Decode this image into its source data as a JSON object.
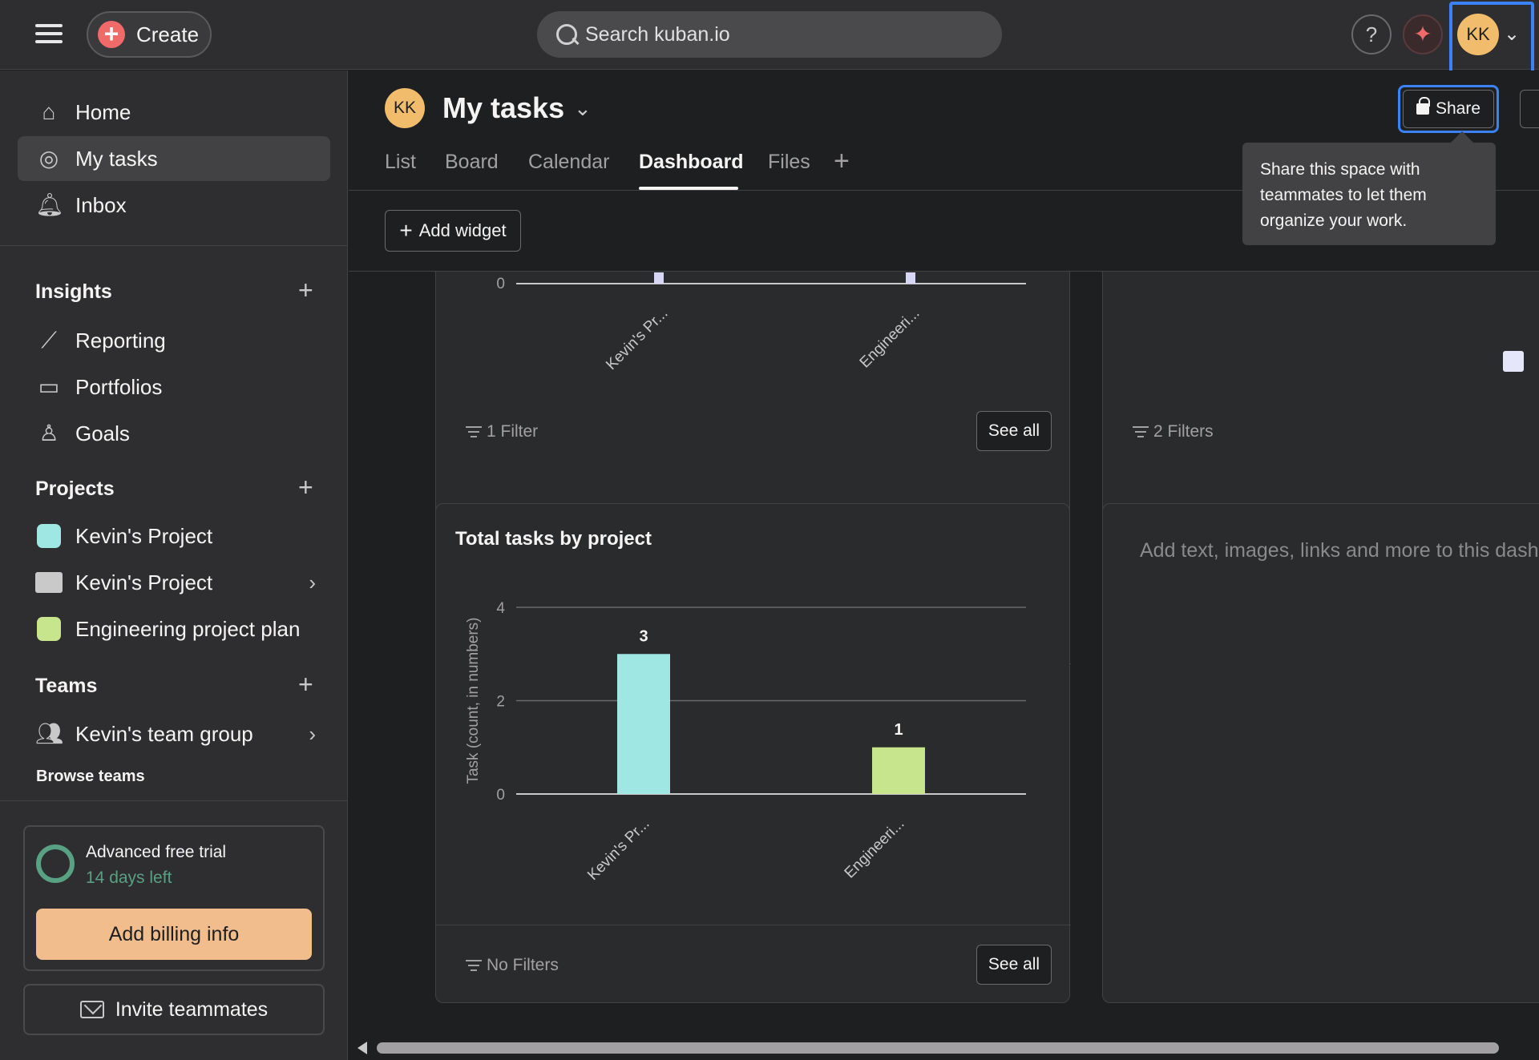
{
  "topbar": {
    "create_label": "Create",
    "search_placeholder": "Search kuban.io",
    "help_label": "?",
    "avatar_initials": "KK"
  },
  "sidebar": {
    "nav": [
      {
        "label": "Home",
        "icon": "home-icon"
      },
      {
        "label": "My tasks",
        "icon": "check-circle-icon",
        "active": true
      },
      {
        "label": "Inbox",
        "icon": "bell-icon"
      }
    ],
    "insights": {
      "heading": "Insights",
      "items": [
        {
          "label": "Reporting",
          "icon": "chart-line-icon"
        },
        {
          "label": "Portfolios",
          "icon": "folder-icon"
        },
        {
          "label": "Goals",
          "icon": "person-icon"
        }
      ]
    },
    "projects": {
      "heading": "Projects",
      "items": [
        {
          "label": "Kevin's Project",
          "color": "#9ee7e3"
        },
        {
          "label": "Kevin's Project",
          "color": "#c9c9c9"
        },
        {
          "label": "Engineering project plan",
          "color": "#c7e58c"
        }
      ]
    },
    "teams": {
      "heading": "Teams",
      "items": [
        {
          "label": "Kevin's team group"
        }
      ],
      "browse": "Browse teams"
    },
    "trial": {
      "title": "Advanced free trial",
      "days_left": "14 days left",
      "billing_button": "Add billing info"
    },
    "invite_button": "Invite teammates"
  },
  "header": {
    "avatar_initials": "KK",
    "title": "My tasks",
    "tabs": [
      {
        "label": "List"
      },
      {
        "label": "Board"
      },
      {
        "label": "Calendar"
      },
      {
        "label": "Dashboard",
        "active": true
      },
      {
        "label": "Files"
      }
    ],
    "share_label": "Share",
    "tooltip": "Share this space with teammates to let them organize your work.",
    "add_widget_label": "Add widget"
  },
  "dashboard": {
    "top_left_card": {
      "filters": "1 Filter",
      "see_all": "See all",
      "zero_tick": "0",
      "categories": [
        "Kevin's Pr...",
        "Engineeri..."
      ]
    },
    "top_right_card": {
      "filters": "2 Filters"
    },
    "total_tasks_card": {
      "title": "Total tasks by project",
      "filters": "No Filters",
      "see_all": "See all"
    },
    "text_widget": {
      "placeholder": "Add text, images, links and more to this dash"
    }
  },
  "chart_data": {
    "type": "bar",
    "title": "Total tasks by project",
    "xlabel": "",
    "ylabel": "Task (count, in numbers)",
    "categories": [
      "Kevin's Pr...",
      "Engineeri..."
    ],
    "values": [
      3,
      1
    ],
    "colors": [
      "#9ee7e3",
      "#c7e58c"
    ],
    "ylim": [
      0,
      4
    ],
    "yticks": [
      0,
      2,
      4
    ],
    "grid": true
  }
}
